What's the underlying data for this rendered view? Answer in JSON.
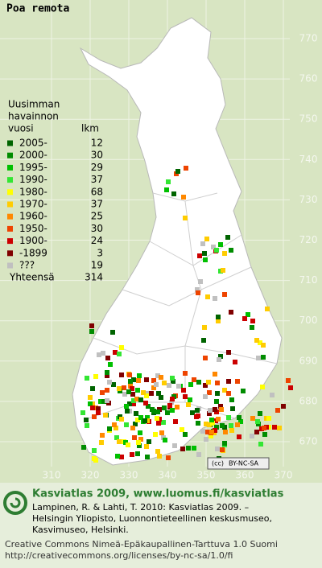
{
  "title": "Poa remota",
  "legend": {
    "heading": [
      "Uusimman",
      "havainnon",
      "vuosi"
    ],
    "count_heading": "lkm",
    "rows": [
      {
        "label": "2005-",
        "count": 12,
        "color": "#006400"
      },
      {
        "label": "2000-",
        "count": 30,
        "color": "#008c00"
      },
      {
        "label": "1995-",
        "count": 29,
        "color": "#00c000"
      },
      {
        "label": "1990-",
        "count": 37,
        "color": "#33e633"
      },
      {
        "label": "1980-",
        "count": 68,
        "color": "#ffff00"
      },
      {
        "label": "1970-",
        "count": 37,
        "color": "#ffcc00"
      },
      {
        "label": "1960-",
        "count": 25,
        "color": "#ff8800"
      },
      {
        "label": "1950-",
        "count": 30,
        "color": "#ee4400"
      },
      {
        "label": "1900-",
        "count": 24,
        "color": "#cc0000"
      },
      {
        "label": "-1899",
        "count": 3,
        "color": "#800000"
      },
      {
        "label": "???",
        "count": 19,
        "color": "#c0c0c0"
      }
    ],
    "total": {
      "label": "Yhteensä",
      "count": 314
    }
  },
  "grid": {
    "x_labels": [
      310,
      320,
      330,
      340,
      350,
      360,
      370
    ],
    "y_labels": [
      670,
      680,
      690,
      700,
      710,
      720,
      730,
      740,
      750,
      760,
      770
    ]
  },
  "license_badge": "BY-NC-SA",
  "footer": {
    "heading": "Kasviatlas 2009, www.luomus.fi/kasviatlas",
    "citation": [
      "Lampinen, R. & Lahti, T. 2010: Kasviatlas 2009. –",
      "Helsingin Yliopisto, Luonnontieteellinen keskusmuseo,",
      "Kasvimuseo, Helsinki."
    ],
    "license": [
      "Creative Commons Nimeä-Epäkaupallinen-Tarttuva 1.0 Suomi",
      "http://creativecommons.org/licenses/by-nc-sa/1.0/fi"
    ]
  }
}
